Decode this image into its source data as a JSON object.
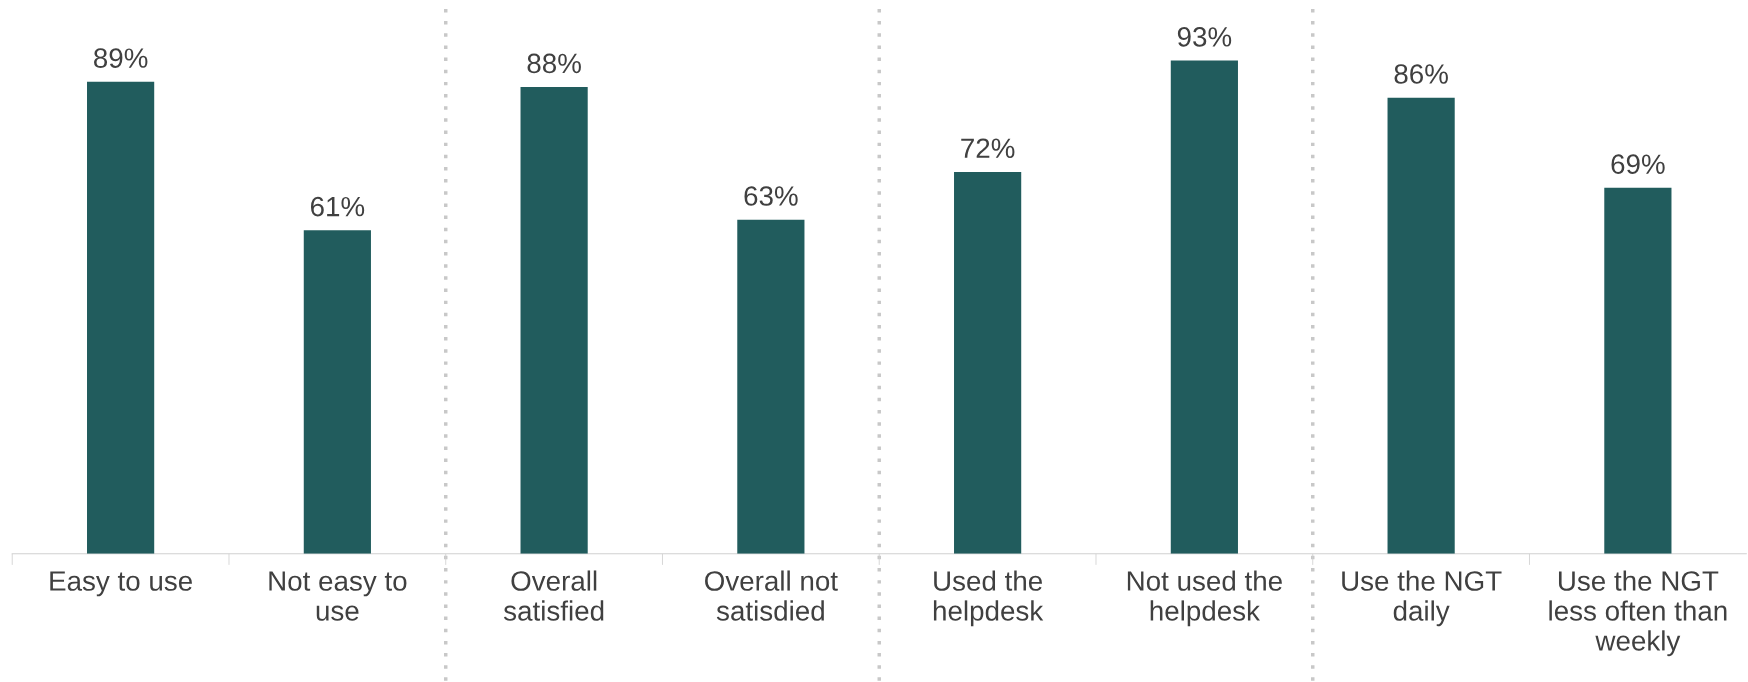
{
  "chart_data": {
    "type": "bar",
    "categories": [
      "Easy to use",
      "Not easy to\nuse",
      "Overall\nsatisfied",
      "Overall not\nsatisdied",
      "Used the\nhelpdesk",
      "Not used the\nhelpdesk",
      "Use the NGT\ndaily",
      "Use the NGT\nless often than\nweekly"
    ],
    "values": [
      89,
      61,
      88,
      63,
      72,
      93,
      86,
      69
    ],
    "value_labels": [
      "89%",
      "61%",
      "88%",
      "63%",
      "72%",
      "93%",
      "86%",
      "69%"
    ],
    "color": "#215c5d",
    "grid": false,
    "legend": false,
    "tick_labels": "x"
  }
}
